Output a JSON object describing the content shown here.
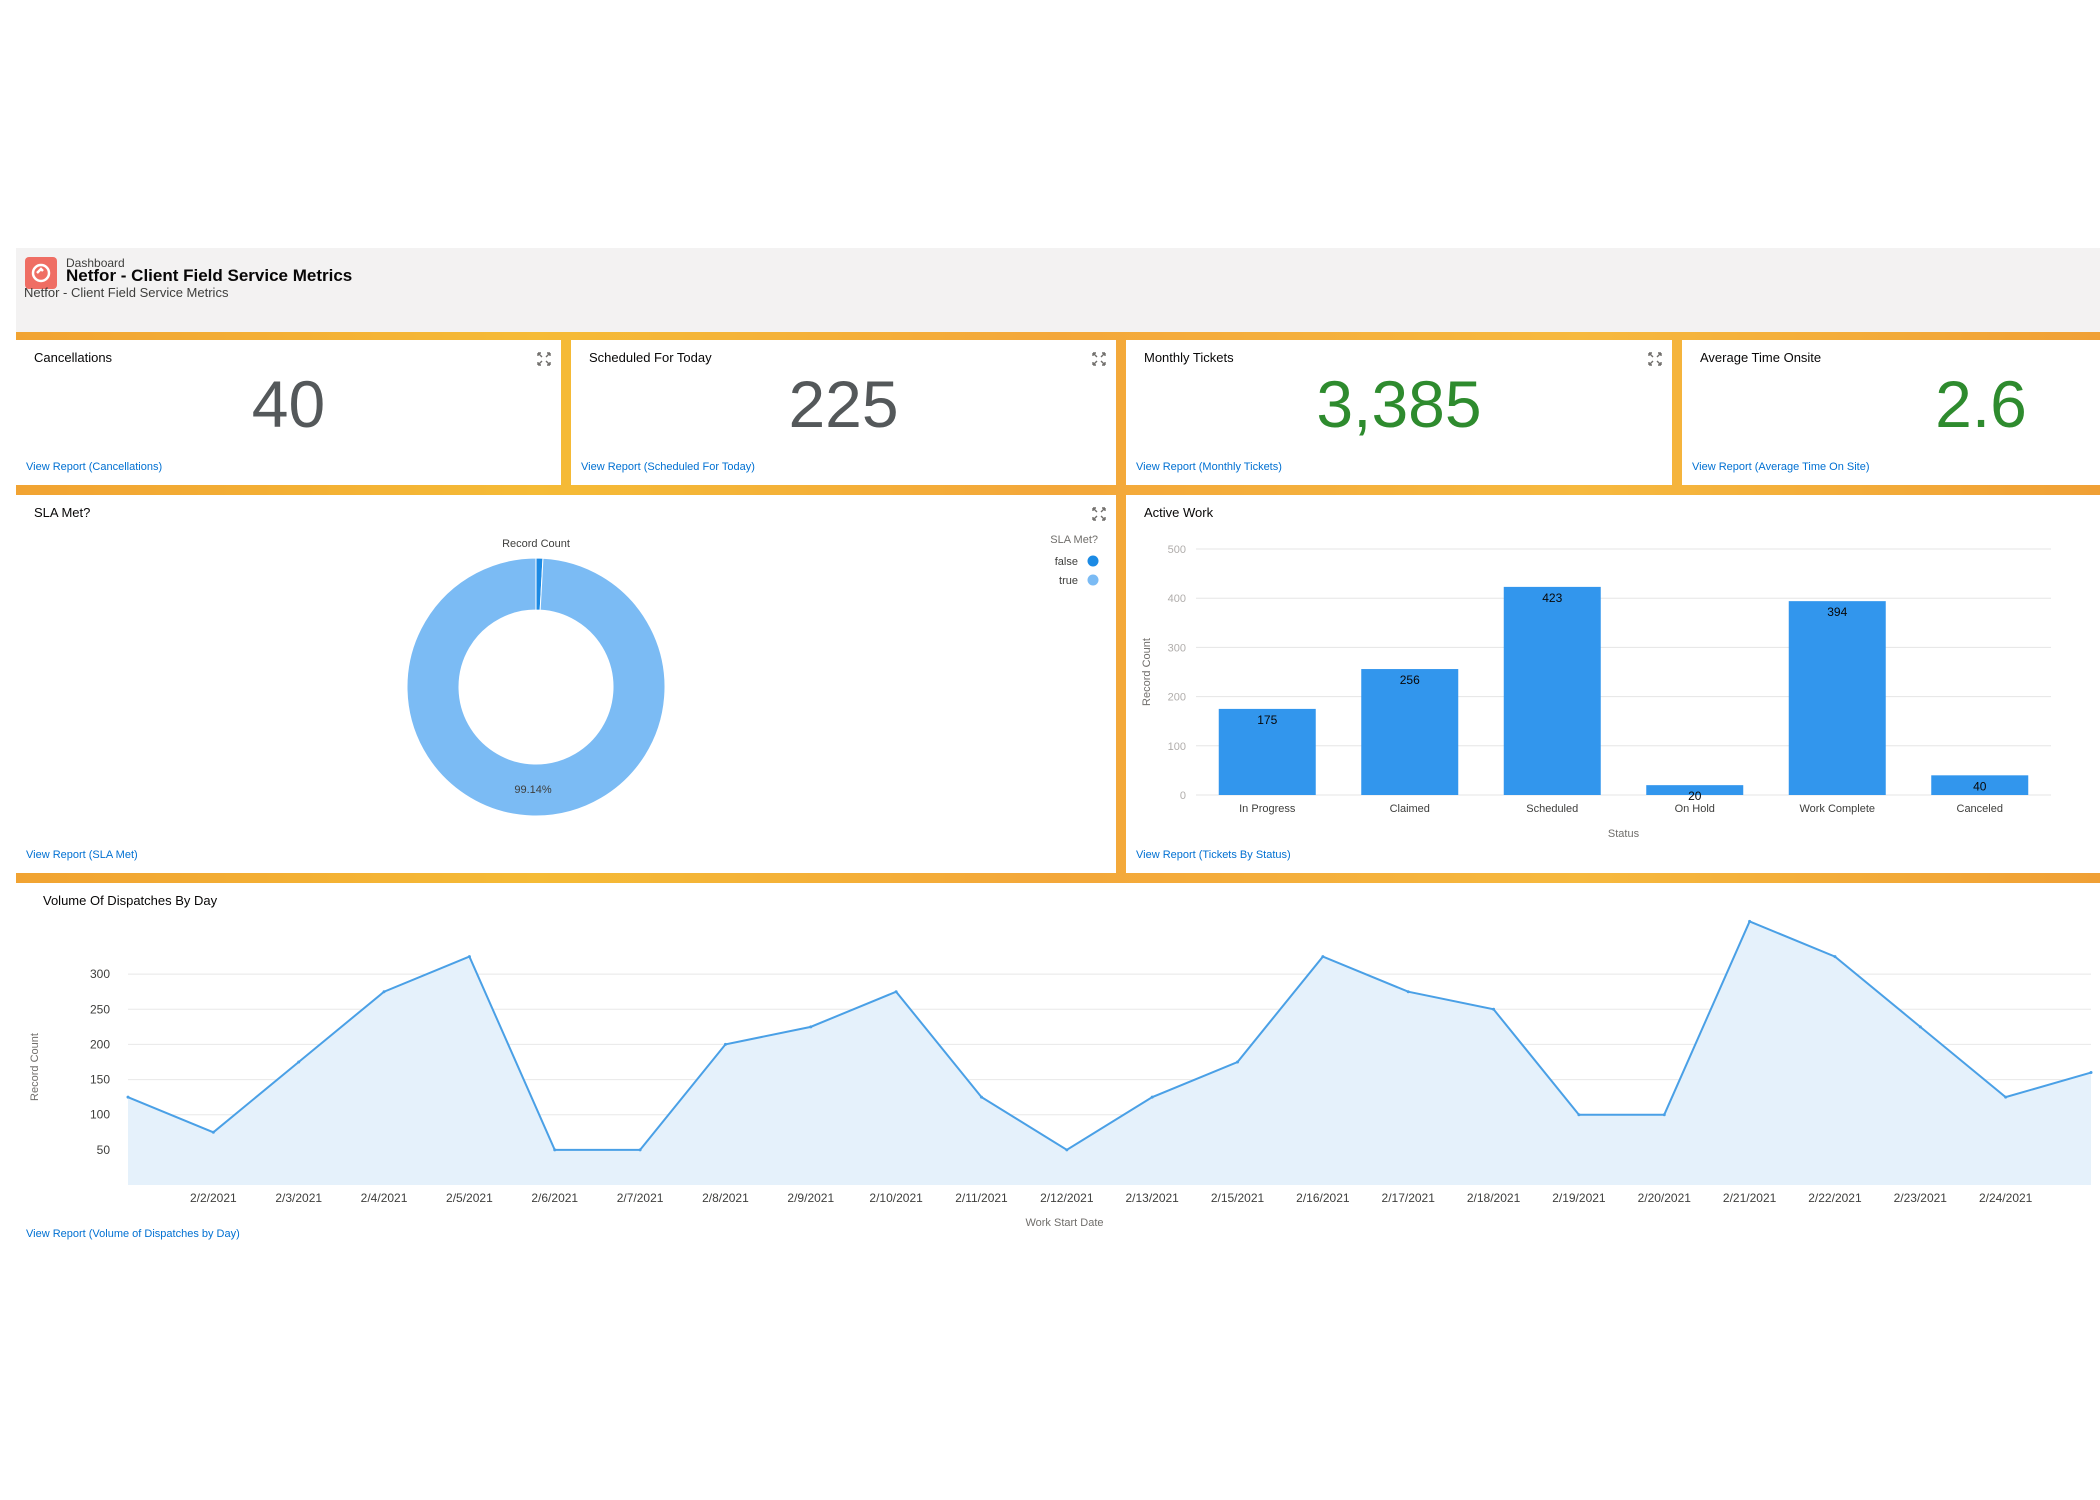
{
  "header": {
    "breadcrumb": "Dashboard",
    "title": "Netfor - Client Field Service Metrics",
    "subtitle": "Netfor - Client Field Service Metrics"
  },
  "metrics": [
    {
      "title": "Cancellations",
      "value": "40",
      "link": "View Report (Cancellations)",
      "color": "#54585a"
    },
    {
      "title": "Scheduled For Today",
      "value": "225",
      "link": "View Report (Scheduled For Today)",
      "color": "#54585a"
    },
    {
      "title": "Monthly Tickets",
      "value": "3,385",
      "link": "View Report (Monthly Tickets)",
      "color": "#2e8b2e"
    },
    {
      "title": "Average Time Onsite",
      "value": "2.6",
      "link": "View Report (Average Time On Site)",
      "color": "#2e8b2e"
    }
  ],
  "sla": {
    "title": "SLA Met?",
    "link": "View Report (SLA Met)",
    "center_label": "Record Count",
    "slice_label": "99.14%"
  },
  "active_work": {
    "title": "Active Work",
    "link": "View Report (Tickets By Status)"
  },
  "volume": {
    "title": "Volume Of Dispatches By Day",
    "link": "View Report (Volume of Dispatches by Day)"
  },
  "chart_data": [
    {
      "type": "pie",
      "donut": true,
      "legend_title": "SLA Met?",
      "legend_position": "top-right",
      "categories": [
        "false",
        "true"
      ],
      "values": [
        0.86,
        99.14
      ],
      "colors": [
        "#1b8ae4",
        "#7bbbf4"
      ],
      "label": "Record Count"
    },
    {
      "type": "bar",
      "categories": [
        "In Progress",
        "Claimed",
        "Scheduled",
        "On Hold",
        "Work Complete",
        "Canceled"
      ],
      "values": [
        175,
        256,
        423,
        20,
        394,
        40
      ],
      "xlabel": "Status",
      "ylabel": "Record Count",
      "ylim": [
        0,
        500
      ],
      "yticks": [
        0,
        100,
        200,
        300,
        400,
        500
      ],
      "color": "#3296ed",
      "grid": true
    },
    {
      "type": "area",
      "x": [
        "2/1/2021",
        "2/2/2021",
        "2/3/2021",
        "2/4/2021",
        "2/5/2021",
        "2/6/2021",
        "2/7/2021",
        "2/8/2021",
        "2/9/2021",
        "2/10/2021",
        "2/11/2021",
        "2/12/2021",
        "2/13/2021",
        "2/15/2021",
        "2/16/2021",
        "2/17/2021",
        "2/18/2021",
        "2/19/2021",
        "2/20/2021",
        "2/21/2021",
        "2/22/2021",
        "2/23/2021",
        "2/24/2021",
        "2/25/2021"
      ],
      "xticks": [
        "2/2/2021",
        "2/3/2021",
        "2/4/2021",
        "2/5/2021",
        "2/6/2021",
        "2/7/2021",
        "2/8/2021",
        "2/9/2021",
        "2/10/2021",
        "2/11/2021",
        "2/12/2021",
        "2/13/2021",
        "2/15/2021",
        "2/16/2021",
        "2/17/2021",
        "2/18/2021",
        "2/19/2021",
        "2/20/2021",
        "2/21/2021",
        "2/22/2021",
        "2/23/2021",
        "2/24/2021"
      ],
      "values": [
        125,
        75,
        175,
        275,
        325,
        50,
        50,
        200,
        225,
        275,
        125,
        50,
        125,
        175,
        325,
        275,
        250,
        100,
        100,
        375,
        325,
        225,
        125,
        160
      ],
      "xlabel": "Work Start Date",
      "ylabel": "Record Count",
      "ylim": [
        0,
        350
      ],
      "yticks": [
        50,
        100,
        150,
        200,
        250,
        300
      ],
      "color": "#4aa0e6",
      "fill": "#e5f1fb",
      "grid": true
    }
  ]
}
